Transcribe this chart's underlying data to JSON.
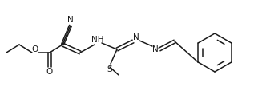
{
  "bg_color": "#ffffff",
  "line_color": "#1a1a1a",
  "line_width": 1.1,
  "font_size": 7.0,
  "fig_width": 3.22,
  "fig_height": 1.38,
  "dpi": 100,
  "xlim": [
    0,
    322
  ],
  "ylim": [
    0,
    138
  ]
}
